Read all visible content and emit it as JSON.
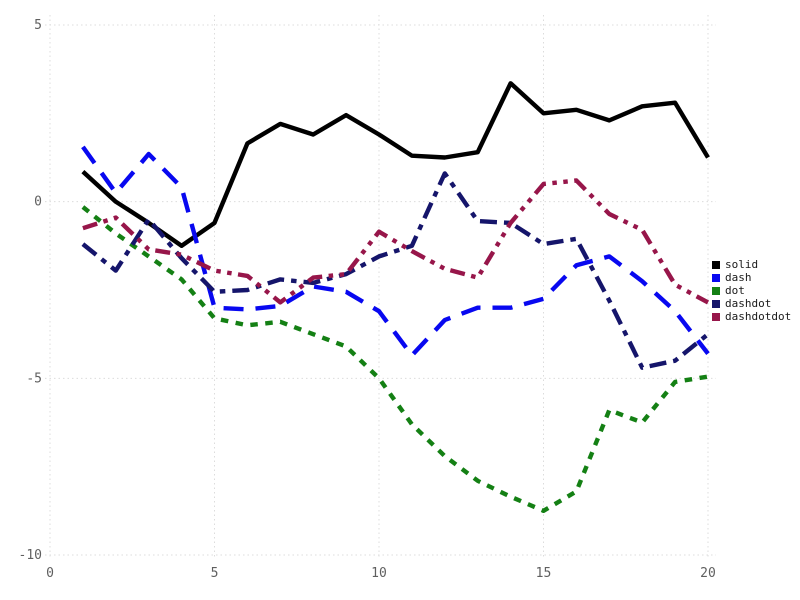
{
  "chart_data": {
    "type": "line",
    "title": "",
    "xlabel": "",
    "ylabel": "",
    "grid": "dotted",
    "legend_position": "right-middle",
    "xlim": [
      0,
      20
    ],
    "ylim": [
      -10,
      5
    ],
    "x_ticks": [
      0,
      5,
      10,
      15,
      20
    ],
    "y_ticks": [
      5,
      0,
      -5,
      -10
    ],
    "x": [
      1,
      2,
      3,
      4,
      5,
      6,
      7,
      8,
      9,
      10,
      11,
      12,
      13,
      14,
      15,
      16,
      17,
      18,
      19,
      20
    ],
    "series": [
      {
        "name": "solid",
        "color": "#000000",
        "linestyle": "solid",
        "values": [
          0.85,
          0.0,
          -0.6,
          -1.25,
          -0.6,
          1.65,
          2.2,
          1.9,
          2.45,
          1.9,
          1.3,
          1.25,
          1.4,
          3.35,
          2.5,
          2.6,
          2.3,
          2.7,
          2.8,
          1.25
        ]
      },
      {
        "name": "dash",
        "color": "#0808f0",
        "linestyle": "dash",
        "values": [
          1.55,
          0.25,
          1.35,
          0.4,
          -3.0,
          -3.05,
          -2.95,
          -2.4,
          -2.55,
          -3.1,
          -4.35,
          -3.35,
          -3.0,
          -3.0,
          -2.75,
          -1.8,
          -1.55,
          -2.25,
          -3.1,
          -4.3
        ]
      },
      {
        "name": "dot",
        "color": "#148014",
        "linestyle": "dot",
        "values": [
          -0.15,
          -0.9,
          -1.55,
          -2.2,
          -3.3,
          -3.5,
          -3.4,
          -3.75,
          -4.1,
          -5.0,
          -6.3,
          -7.2,
          -7.9,
          -8.35,
          -8.75,
          -8.2,
          -5.9,
          -6.25,
          -5.1,
          -4.95
        ]
      },
      {
        "name": "dashdot",
        "color": "#15156b",
        "linestyle": "dashdot",
        "values": [
          -1.2,
          -1.95,
          -0.5,
          -1.6,
          -2.55,
          -2.5,
          -2.2,
          -2.3,
          -2.05,
          -1.55,
          -1.25,
          0.8,
          -0.55,
          -0.6,
          -1.2,
          -1.05,
          -2.8,
          -4.7,
          -4.5,
          -3.75
        ]
      },
      {
        "name": "dashdotdot",
        "color": "#97164a",
        "linestyle": "dashdotdot",
        "values": [
          -0.75,
          -0.45,
          -1.35,
          -1.5,
          -1.95,
          -2.1,
          -2.85,
          -2.15,
          -2.05,
          -0.85,
          -1.4,
          -1.9,
          -2.15,
          -0.6,
          0.5,
          0.6,
          -0.35,
          -0.8,
          -2.35,
          -2.85
        ]
      }
    ]
  },
  "legend": {
    "items": [
      {
        "label": "solid",
        "color": "#000000"
      },
      {
        "label": "dash",
        "color": "#0808f0"
      },
      {
        "label": "dot",
        "color": "#148014"
      },
      {
        "label": "dashdot",
        "color": "#15156b"
      },
      {
        "label": "dashdotdot",
        "color": "#97164a"
      }
    ]
  },
  "style": {
    "grid_color": "#dcdcdc",
    "tick_color": "#5f5f5f",
    "background": "#ffffff"
  }
}
